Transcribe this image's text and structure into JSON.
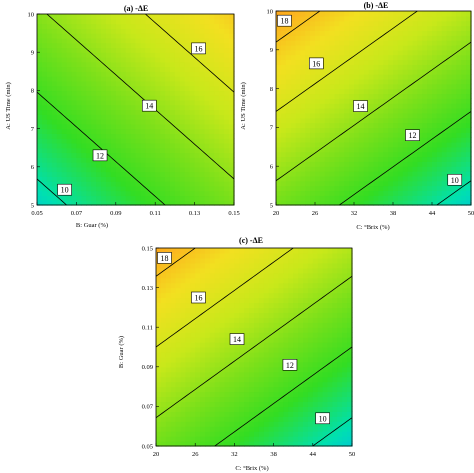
{
  "chart_data": [
    {
      "type": "contour",
      "title": "(a) -ΔE",
      "xlabel": "B: Guar (%)",
      "ylabel": "A: US Time (min)",
      "xlim": [
        0.05,
        0.15
      ],
      "ylim": [
        5,
        10
      ],
      "xticks": [
        "0.05",
        "0.07",
        "0.09",
        "0.11",
        "0.13",
        "0.15"
      ],
      "yticks": [
        "5",
        "6",
        "7",
        "8",
        "9",
        "10"
      ],
      "corner_values": {
        "x0y0": 9.4,
        "x1y0": 13.4,
        "x0y1": 13.8,
        "x1y1": 17.8
      },
      "contour_levels": [
        10,
        12,
        14,
        16
      ],
      "contour_labels": [
        {
          "text": "10",
          "x": 0.064,
          "y": 5.4
        },
        {
          "text": "12",
          "x": 0.082,
          "y": 6.3
        },
        {
          "text": "14",
          "x": 0.107,
          "y": 7.6
        },
        {
          "text": "16",
          "x": 0.132,
          "y": 9.1
        }
      ]
    },
    {
      "type": "contour",
      "title": "(b) -ΔE",
      "xlabel": "C: °Brix (%)",
      "ylabel": "A: US Time (min)",
      "xlim": [
        20,
        50
      ],
      "ylim": [
        5,
        10
      ],
      "xticks": [
        "20",
        "26",
        "32",
        "38",
        "44",
        "50"
      ],
      "yticks": [
        "5",
        "6",
        "7",
        "8",
        "9",
        "10"
      ],
      "corner_values": {
        "x0y0": 13.3,
        "x1y0": 9.3,
        "x0y1": 18.9,
        "x1y1": 14.9
      },
      "contour_levels": [
        10,
        12,
        14,
        16,
        18
      ],
      "contour_labels": [
        {
          "text": "18",
          "x": 21.3,
          "y": 9.75
        },
        {
          "text": "16",
          "x": 26.2,
          "y": 8.65
        },
        {
          "text": "14",
          "x": 33.0,
          "y": 7.55
        },
        {
          "text": "12",
          "x": 41.0,
          "y": 6.8
        },
        {
          "text": "10",
          "x": 47.5,
          "y": 5.65
        }
      ]
    },
    {
      "type": "contour",
      "title": "(c) -ΔE",
      "xlabel": "C: °Brix (%)",
      "ylabel": "B: Guar (%)",
      "xlim": [
        20,
        50
      ],
      "ylim": [
        0.05,
        0.15
      ],
      "xticks": [
        "20",
        "26",
        "32",
        "38",
        "44",
        "50"
      ],
      "yticks": [
        "0.05",
        "0.07",
        "0.09",
        "0.11",
        "0.13",
        "0.15"
      ],
      "corner_values": {
        "x0y0": 13.2,
        "x1y0": 9.2,
        "x0y1": 18.8,
        "x1y1": 14.8
      },
      "contour_levels": [
        10,
        12,
        14,
        16,
        18
      ],
      "contour_labels": [
        {
          "text": "18",
          "x": 21.3,
          "y": 0.145
        },
        {
          "text": "16",
          "x": 26.5,
          "y": 0.125
        },
        {
          "text": "14",
          "x": 32.4,
          "y": 0.104
        },
        {
          "text": "12",
          "x": 40.5,
          "y": 0.091
        },
        {
          "text": "10",
          "x": 45.5,
          "y": 0.064
        }
      ]
    }
  ],
  "colormap": [
    "#00a8ff",
    "#00e0b0",
    "#33dd22",
    "#7be01a",
    "#c8e81a",
    "#f2e020",
    "#ffa21e"
  ],
  "colormap_range": [
    8,
    19
  ]
}
